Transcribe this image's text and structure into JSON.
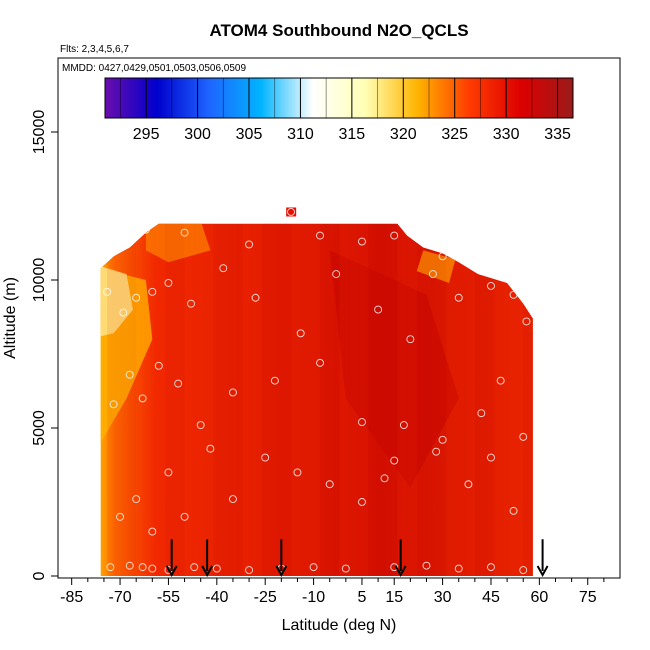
{
  "chart_data": {
    "type": "heatmap",
    "title": "ATOM4 Southbound N2O_QCLS",
    "subtitle_flights": "Flts: 2,3,4,5,6,7",
    "subtitle_dates": "MMDD: 0427,0429,0501,0503,0506,0509",
    "xlabel": "Latitude (deg N)",
    "ylabel": "Altitude (m)",
    "xlim": [
      -88,
      85
    ],
    "ylim": [
      0,
      17500
    ],
    "x_ticks": [
      -85,
      -70,
      -55,
      -40,
      -25,
      -10,
      5,
      15,
      30,
      45,
      60,
      75
    ],
    "x_minor_ticks": [
      -80,
      -75,
      -65,
      -60,
      -50,
      -45,
      -35,
      -30,
      -20,
      -15,
      -5,
      0,
      10,
      20,
      25,
      35,
      40,
      50,
      55,
      65,
      70,
      80
    ],
    "y_ticks": [
      0,
      5000,
      10000,
      15000
    ],
    "colorbar": {
      "ticks": [
        295,
        300,
        305,
        310,
        315,
        320,
        325,
        330,
        335
      ],
      "range": [
        291,
        336.5
      ],
      "colors": [
        "#6a0dad",
        "#0000cd",
        "#1e64ff",
        "#00b4ff",
        "#ffffff",
        "#ffffb4",
        "#ffb400",
        "#ff3c00",
        "#dc0000",
        "#9b1b1b"
      ]
    },
    "field": {
      "description": "N2O mixing ratio (ppb) interpolated curtain",
      "top_profile": [
        [
          -76,
          10400
        ],
        [
          -72,
          10800
        ],
        [
          -67,
          11100
        ],
        [
          -62,
          11600
        ],
        [
          -58,
          11900
        ],
        [
          -40,
          11900
        ],
        [
          -20,
          11900
        ],
        [
          -5,
          11900
        ],
        [
          10,
          11900
        ],
        [
          16,
          11900
        ],
        [
          19,
          11500
        ],
        [
          24,
          11100
        ],
        [
          30,
          10900
        ],
        [
          35,
          10600
        ],
        [
          41,
          10200
        ],
        [
          50,
          9900
        ],
        [
          55,
          9200
        ],
        [
          58,
          8700
        ]
      ],
      "bottom_profile": [
        [
          -74,
          0
        ],
        [
          58,
          0
        ]
      ]
    },
    "arrows_latitude": [
      -54,
      -43,
      -20,
      17,
      61
    ],
    "sample_points": [
      [
        -73,
        300
      ],
      [
        -67,
        350
      ],
      [
        -63,
        300
      ],
      [
        -60,
        250
      ],
      [
        -55,
        200
      ],
      [
        -47,
        300
      ],
      [
        -40,
        250
      ],
      [
        -30,
        200
      ],
      [
        -20,
        250
      ],
      [
        -10,
        300
      ],
      [
        0,
        250
      ],
      [
        15,
        300
      ],
      [
        25,
        350
      ],
      [
        35,
        250
      ],
      [
        45,
        300
      ],
      [
        55,
        200
      ],
      [
        -70,
        2000
      ],
      [
        -65,
        2600
      ],
      [
        -60,
        1500
      ],
      [
        -55,
        3500
      ],
      [
        -50,
        2000
      ],
      [
        -42,
        4300
      ],
      [
        -35,
        2600
      ],
      [
        -25,
        4000
      ],
      [
        -15,
        3500
      ],
      [
        -5,
        3100
      ],
      [
        5,
        2500
      ],
      [
        12,
        3300
      ],
      [
        18,
        5100
      ],
      [
        28,
        4200
      ],
      [
        38,
        3100
      ],
      [
        45,
        4000
      ],
      [
        52,
        2200
      ],
      [
        -72,
        5800
      ],
      [
        -67,
        6800
      ],
      [
        -63,
        6000
      ],
      [
        -58,
        7100
      ],
      [
        -52,
        6500
      ],
      [
        -45,
        5100
      ],
      [
        -35,
        6200
      ],
      [
        -22,
        6600
      ],
      [
        -8,
        7200
      ],
      [
        5,
        5200
      ],
      [
        15,
        3900
      ],
      [
        30,
        4600
      ],
      [
        42,
        5500
      ],
      [
        48,
        6600
      ],
      [
        55,
        4700
      ],
      [
        -74,
        9600
      ],
      [
        -69,
        8900
      ],
      [
        -65,
        9400
      ],
      [
        -60,
        9600
      ],
      [
        -55,
        9900
      ],
      [
        -48,
        9200
      ],
      [
        -38,
        10400
      ],
      [
        -28,
        9400
      ],
      [
        -14,
        8200
      ],
      [
        -3,
        10200
      ],
      [
        10,
        9000
      ],
      [
        20,
        8000
      ],
      [
        27,
        10200
      ],
      [
        35,
        9400
      ],
      [
        45,
        9800
      ],
      [
        52,
        9500
      ],
      [
        56,
        8600
      ],
      [
        -62,
        11700
      ],
      [
        -50,
        11600
      ],
      [
        -30,
        11200
      ],
      [
        -8,
        11500
      ],
      [
        5,
        11300
      ],
      [
        15,
        11500
      ],
      [
        30,
        10800
      ],
      [
        -17,
        12300
      ]
    ]
  }
}
